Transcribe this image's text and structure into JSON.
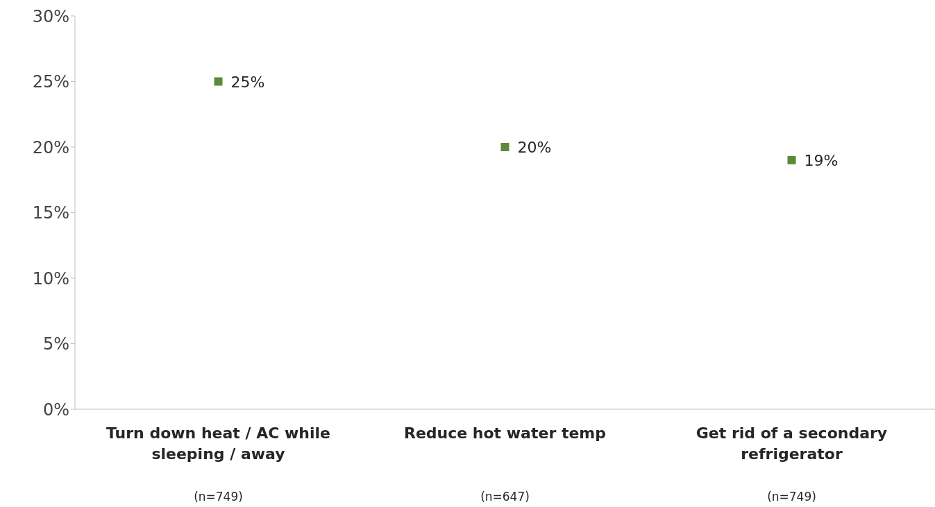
{
  "chart_data": {
    "type": "scatter",
    "categories": [
      "Turn down heat / AC while sleeping / away",
      "Reduce hot water temp",
      "Get rid of a secondary refrigerator"
    ],
    "values": [
      25,
      20,
      19
    ],
    "value_labels": [
      "25%",
      "20%",
      "19%"
    ],
    "color": "#5b8a3a",
    "marker": "square",
    "ylim": [
      0,
      30
    ],
    "yticks": [
      {
        "value": 0,
        "label": "0%"
      },
      {
        "value": 5,
        "label": "5%"
      },
      {
        "value": 10,
        "label": "10%"
      },
      {
        "value": 15,
        "label": "15%"
      },
      {
        "value": 20,
        "label": "20%"
      },
      {
        "value": 25,
        "label": "25%"
      },
      {
        "value": 30,
        "label": "30%"
      }
    ],
    "annotations": [
      "(n=749)",
      "(n=647)",
      "(n=749)"
    ],
    "grid": false,
    "legend": false
  }
}
